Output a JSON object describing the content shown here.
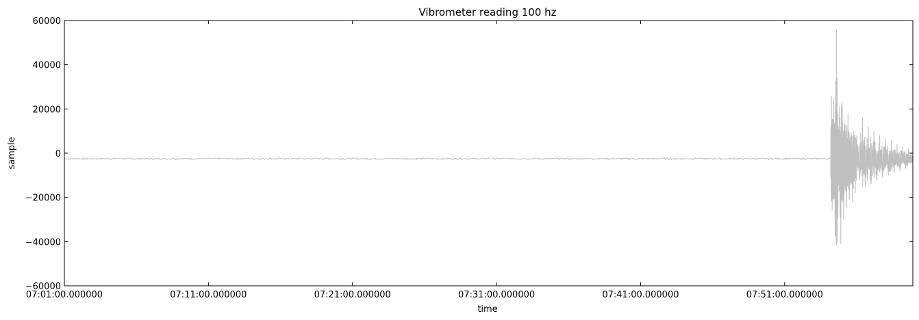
{
  "chart_data": {
    "type": "line",
    "title": "Vibrometer reading 100 hz",
    "xlabel": "time",
    "ylabel": "sample",
    "ylim": [
      -60000,
      60000
    ],
    "yticks": [
      60000,
      40000,
      20000,
      0,
      -20000,
      -40000,
      -60000
    ],
    "ytick_labels": [
      "60000",
      "40000",
      "20000",
      "0",
      "−20000",
      "−40000",
      "−60000"
    ],
    "xlim_minutes": [
      0,
      58.9
    ],
    "xtick_labels": [
      "07:01:00.000000",
      "07:11:00.000000",
      "07:21:00.000000",
      "07:31:00.000000",
      "07:41:00.000000",
      "07:51:00.000000"
    ],
    "xtick_minutes": [
      0,
      10,
      20,
      30,
      40,
      50
    ],
    "grid": false,
    "legend": "none",
    "series": [
      {
        "color": "#bfbfbf",
        "baseline": -2500,
        "x_minutes": [
          0,
          53.2,
          53.25,
          53.3,
          53.4,
          53.5,
          53.6,
          53.7,
          53.8,
          53.9,
          54.0,
          54.1,
          54.2,
          54.3,
          54.4,
          54.5,
          54.6,
          54.7,
          54.8,
          54.9,
          55.0,
          55.2,
          55.4,
          55.6,
          55.8,
          56.0,
          56.2,
          56.4,
          56.6,
          56.8,
          57.0,
          57.2,
          57.4,
          57.6,
          57.8,
          58.0,
          58.2,
          58.4,
          58.6,
          58.9
        ],
        "y": [
          -2500,
          -2500,
          26000,
          -26000,
          25000,
          -31000,
          56000,
          -22000,
          21000,
          -41000,
          21000,
          -30000,
          13000,
          -25000,
          18000,
          -21000,
          5000,
          -22000,
          10000,
          -18000,
          8000,
          -12000,
          16000,
          -15000,
          12000,
          -14000,
          10000,
          -12000,
          8000,
          -11000,
          7000,
          -10000,
          6000,
          -9000,
          4000,
          -8000,
          3000,
          -7000,
          2000,
          -3000
        ]
      }
    ]
  }
}
